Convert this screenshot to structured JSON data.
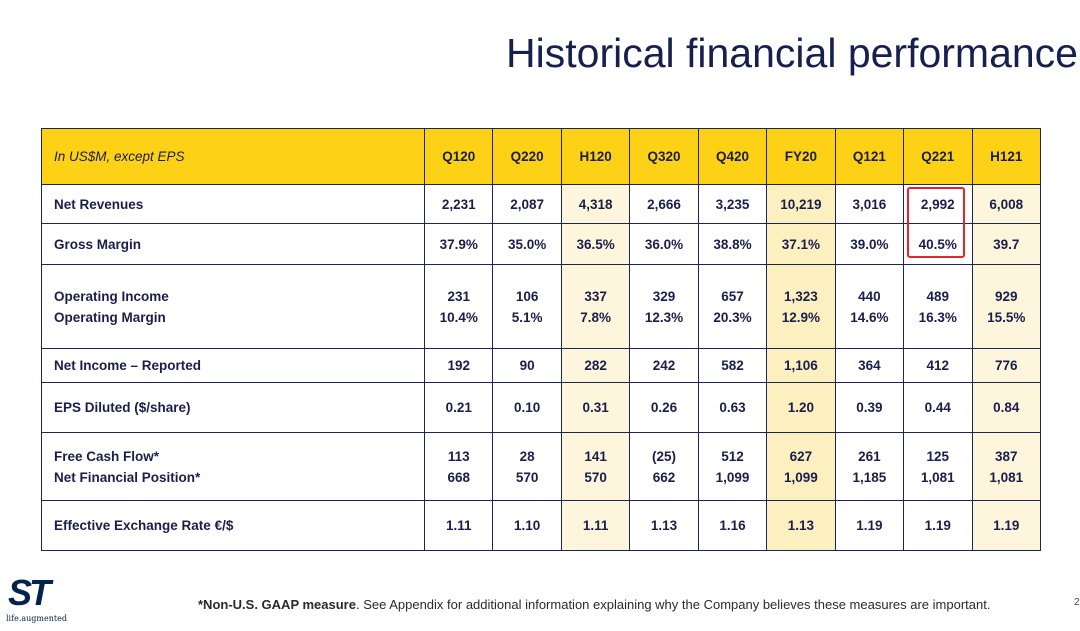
{
  "header": {
    "title": "Historical financial performance"
  },
  "table": {
    "columns": [
      "In US$M, except EPS",
      "Q120",
      "Q220",
      "H120",
      "Q320",
      "Q420",
      "FY20",
      "Q121",
      "Q221",
      "H121"
    ],
    "rows": [
      [
        [
          "Net Revenues",
          "2,231",
          "2,087",
          "4,318",
          "2,666",
          "3,235",
          "10,219",
          "3,016",
          "2,992",
          "6,008"
        ]
      ],
      [
        [
          "Gross Margin",
          "37.9%",
          "35.0%",
          "36.5%",
          "36.0%",
          "38.8%",
          "37.1%",
          "39.0%",
          "40.5%",
          "39.7"
        ]
      ],
      [
        [
          "Operating Income",
          "231",
          "106",
          "337",
          "329",
          "657",
          "1,323",
          "440",
          "489",
          "929"
        ],
        [
          "Operating Margin",
          "10.4%",
          "5.1%",
          "7.8%",
          "12.3%",
          "20.3%",
          "12.9%",
          "14.6%",
          "16.3%",
          "15.5%"
        ]
      ],
      [
        [
          "Net Income – Reported",
          "192",
          "90",
          "282",
          "242",
          "582",
          "1,106",
          "364",
          "412",
          "776"
        ]
      ],
      [
        [
          "EPS Diluted ($/share)",
          "0.21",
          "0.10",
          "0.31",
          "0.26",
          "0.63",
          "1.20",
          "0.39",
          "0.44",
          "0.84"
        ]
      ],
      [
        [
          "Free Cash Flow*",
          "113",
          "28",
          "141",
          "(25)",
          "512",
          "627",
          "261",
          "125",
          "387"
        ],
        [
          "Net Financial Position*",
          "668",
          "570",
          "570",
          "662",
          "1,099",
          "1,099",
          "1,185",
          "1,081",
          "1,081"
        ]
      ],
      [
        [
          "Effective Exchange Rate €/$",
          "1.11",
          "1.10",
          "1.11",
          "1.13",
          "1.16",
          "1.13",
          "1.19",
          "1.19",
          "1.19"
        ]
      ]
    ]
  },
  "footer": {
    "logo": "ST",
    "tagline": "life.augmented",
    "note_bold": "*Non-U.S. GAAP measure",
    "note": ". See Appendix for additional information explaining why the Company believes these measures are important.",
    "page": "2"
  }
}
